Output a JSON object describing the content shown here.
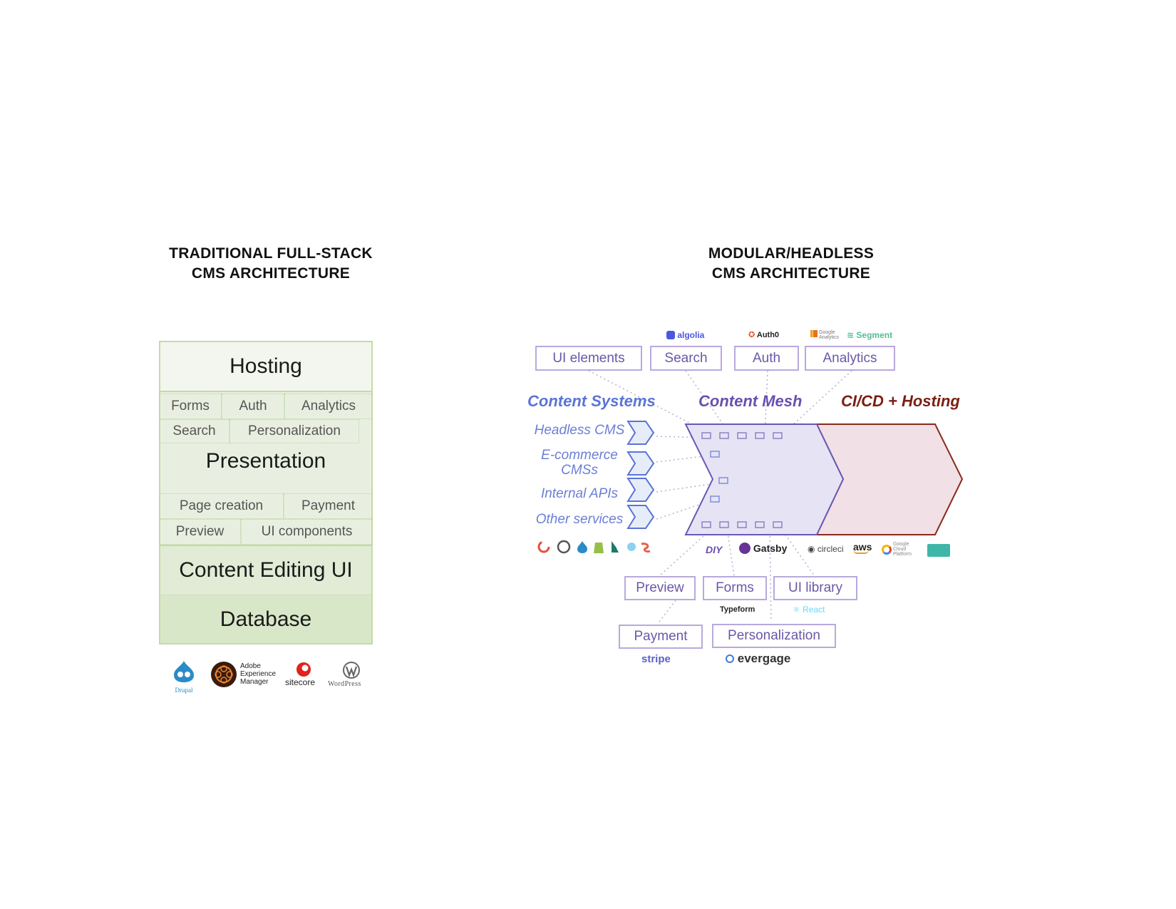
{
  "left": {
    "title_line1": "TRADITIONAL FULL-STACK",
    "title_line2": "CMS ARCHITECTURE",
    "layers": {
      "hosting": "Hosting",
      "presentation": "Presentation",
      "editing": "Content Editing UI",
      "database": "Database"
    },
    "features": {
      "forms": "Forms",
      "auth": "Auth",
      "analytics": "Analytics",
      "search": "Search",
      "personalization": "Personalization",
      "page_creation": "Page creation",
      "payment": "Payment",
      "preview": "Preview",
      "ui_components": "UI components"
    },
    "logos": {
      "drupal": "Drupal",
      "aem_line1": "Adobe",
      "aem_line2": "Experience",
      "aem_line3": "Manager",
      "sitecore": "sitecore",
      "wordpress": "WordPress"
    }
  },
  "right": {
    "title_line1": "MODULAR/HEADLESS",
    "title_line2": "CMS ARCHITECTURE",
    "sections": {
      "content_systems": "Content Systems",
      "content_mesh": "Content Mesh",
      "cicd": "CI/CD + Hosting"
    },
    "top_boxes": {
      "ui_elements": "UI elements",
      "search": "Search",
      "auth": "Auth",
      "analytics": "Analytics"
    },
    "top_brands": {
      "algolia": "algolia",
      "auth0": "Auth0",
      "google_analytics": "Google Analytics",
      "segment": "Segment"
    },
    "content_systems": {
      "headless_cms": "Headless CMS",
      "ecommerce_line1": "E-commerce",
      "ecommerce_line2": "CMSs",
      "internal_apis": "Internal APIs",
      "other_services": "Other services"
    },
    "bottom_brands": {
      "diy": "DIY",
      "gatsby": "Gatsby",
      "circleci": "circleci",
      "aws": "aws",
      "google_cloud": "Google Cloud Platform"
    },
    "bottom_boxes": {
      "preview": "Preview",
      "forms": "Forms",
      "ui_library": "UI library",
      "payment": "Payment",
      "personalization": "Personalization"
    },
    "bottom_box_brands": {
      "typeform": "Typeform",
      "react": "React",
      "stripe": "stripe",
      "evergage": "evergage"
    },
    "colors": {
      "content_systems": "#5b74d6",
      "content_mesh": "#6a4fb0",
      "cicd": "#7a1e12",
      "box_border": "#b9a9dc",
      "stack_border": "#c3dba6"
    }
  }
}
